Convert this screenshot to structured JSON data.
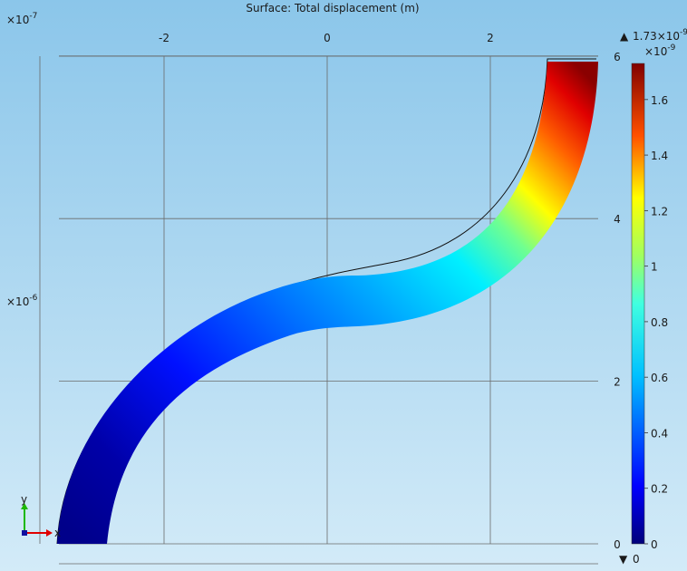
{
  "chart_data": {
    "type": "surface",
    "title": "Surface: Total displacement (m)",
    "x_axis": {
      "multiplier": "×10",
      "multiplier_exp": "-7",
      "range": [
        -3.3,
        3.3
      ],
      "ticks": [
        {
          "value": -2,
          "label": "-2"
        },
        {
          "value": 0,
          "label": "0"
        },
        {
          "value": 2,
          "label": "2"
        }
      ]
    },
    "y_axis": {
      "multiplier": "×10",
      "multiplier_exp": "-6",
      "range": [
        0,
        6
      ],
      "ticks": [
        {
          "value": 0,
          "label": "0"
        },
        {
          "value": 2,
          "label": "2"
        },
        {
          "value": 4,
          "label": "4"
        },
        {
          "value": 6,
          "label": "6"
        }
      ]
    },
    "colorbar": {
      "max_label": "1.73×10",
      "max_label_exp": "-9",
      "max_marker": "▲",
      "multiplier": "×10",
      "multiplier_exp": "-9",
      "min_marker": "▼",
      "min_label": "0",
      "range": [
        0,
        1.73
      ],
      "colormap": "Rainbow",
      "ticks": [
        {
          "value": 0,
          "label": "0"
        },
        {
          "value": 0.2,
          "label": "0.2"
        },
        {
          "value": 0.4,
          "label": "0.4"
        },
        {
          "value": 0.6,
          "label": "0.6"
        },
        {
          "value": 0.8,
          "label": "0.8"
        },
        {
          "value": 1.0,
          "label": "1"
        },
        {
          "value": 1.2,
          "label": "1.2"
        },
        {
          "value": 1.4,
          "label": "1.4"
        },
        {
          "value": 1.6,
          "label": "1.6"
        }
      ]
    },
    "axis_triad": {
      "x_label": "x",
      "y_label": "y"
    },
    "structure_centerline": {
      "description_units": "x in 1e-7 m, y in 1e-6 m",
      "points": [
        [
          -2.4,
          0
        ],
        [
          -1.9,
          1.6
        ],
        [
          -0.6,
          3.1
        ],
        [
          0,
          3.35
        ],
        [
          0.6,
          3.5
        ],
        [
          2.0,
          4.3
        ],
        [
          3.2,
          6.0
        ]
      ],
      "displacement_at_points": [
        0.0,
        0.35,
        0.47,
        0.55,
        0.6,
        0.75,
        1.73
      ]
    },
    "grid": true
  }
}
